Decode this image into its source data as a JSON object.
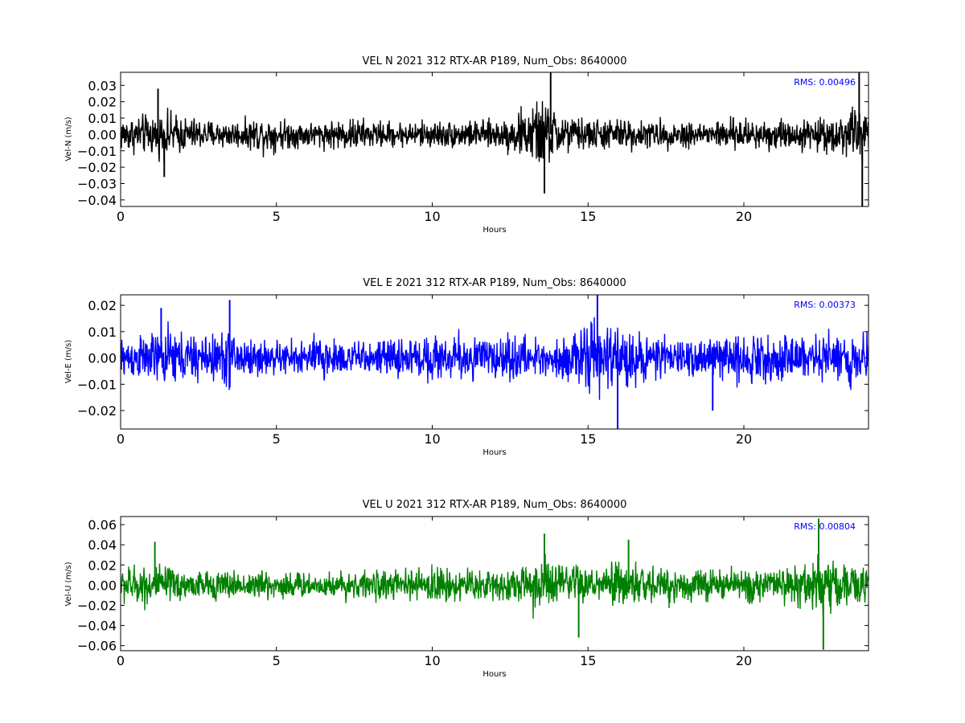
{
  "chart_data": [
    {
      "type": "line",
      "title": "VEL N 2021 312 RTX-AR  P189, Num_Obs: 8640000",
      "xlabel": "Hours",
      "ylabel": "Vel-N (m/s)",
      "xlim": [
        0,
        24
      ],
      "ylim": [
        -0.044,
        0.038
      ],
      "xticks": [
        0,
        5,
        10,
        15,
        20
      ],
      "xtick_labels": [
        "0",
        "5",
        "10",
        "15",
        "20"
      ],
      "yticks": [
        -0.04,
        -0.03,
        -0.02,
        -0.01,
        0.0,
        0.01,
        0.02,
        0.03
      ],
      "ytick_labels": [
        "−0.04",
        "−0.03",
        "−0.02",
        "−0.01",
        "0.00",
        "0.01",
        "0.02",
        "0.03"
      ],
      "color": "#000000",
      "rms_label": "RMS:  0.00496",
      "rms_color": "#0000ff",
      "grid": false,
      "envelope": {
        "x": [
          0,
          1,
          1.5,
          2,
          3,
          4,
          4.5,
          5,
          6,
          7,
          7.5,
          8,
          9,
          10,
          11,
          12,
          12.5,
          13,
          13.5,
          14,
          14.5,
          15,
          16,
          17,
          18,
          19,
          20,
          21,
          22,
          23,
          23.5,
          24
        ],
        "amp": [
          0.015,
          0.018,
          0.02,
          0.016,
          0.012,
          0.012,
          0.016,
          0.014,
          0.011,
          0.013,
          0.015,
          0.012,
          0.011,
          0.012,
          0.012,
          0.012,
          0.016,
          0.024,
          0.03,
          0.022,
          0.015,
          0.014,
          0.014,
          0.012,
          0.012,
          0.012,
          0.014,
          0.014,
          0.013,
          0.016,
          0.024,
          0.022
        ]
      },
      "spikes": [
        {
          "x": 1.2,
          "y": 0.028
        },
        {
          "x": 1.4,
          "y": -0.026
        },
        {
          "x": 13.8,
          "y": 0.038
        },
        {
          "x": 13.6,
          "y": -0.036
        },
        {
          "x": 23.7,
          "y": 0.038
        },
        {
          "x": 23.8,
          "y": -0.044
        }
      ]
    },
    {
      "type": "line",
      "title": "VEL E 2021 312 RTX-AR  P189, Num_Obs: 8640000",
      "xlabel": "Hours",
      "ylabel": "Vel-E (m/s)",
      "xlim": [
        0,
        24
      ],
      "ylim": [
        -0.027,
        0.024
      ],
      "xticks": [
        0,
        5,
        10,
        15,
        20
      ],
      "xtick_labels": [
        "0",
        "5",
        "10",
        "15",
        "20"
      ],
      "yticks": [
        -0.02,
        -0.01,
        0.0,
        0.01,
        0.02
      ],
      "ytick_labels": [
        "−0.02",
        "−0.01",
        "0.00",
        "0.01",
        "0.02"
      ],
      "color": "#0000ff",
      "rms_label": "RMS:  0.00373",
      "rms_color": "#0000ff",
      "grid": false,
      "envelope": {
        "x": [
          0,
          1,
          1.5,
          2,
          3,
          3.5,
          4,
          5,
          6,
          6.5,
          7,
          8,
          9,
          10,
          11,
          12,
          13,
          14,
          14.5,
          15,
          15.5,
          16,
          16.5,
          17,
          18,
          19,
          20,
          21,
          22,
          23,
          24
        ],
        "amp": [
          0.011,
          0.013,
          0.016,
          0.014,
          0.012,
          0.017,
          0.011,
          0.009,
          0.01,
          0.014,
          0.01,
          0.008,
          0.011,
          0.012,
          0.013,
          0.012,
          0.011,
          0.01,
          0.013,
          0.018,
          0.02,
          0.016,
          0.014,
          0.011,
          0.01,
          0.011,
          0.013,
          0.012,
          0.012,
          0.014,
          0.014
        ]
      },
      "spikes": [
        {
          "x": 3.5,
          "y": 0.022
        },
        {
          "x": 15.3,
          "y": 0.024
        },
        {
          "x": 15.95,
          "y": -0.027
        },
        {
          "x": 1.3,
          "y": 0.019
        },
        {
          "x": 19.0,
          "y": -0.02
        }
      ]
    },
    {
      "type": "line",
      "title": "VEL U 2021 312 RTX-AR  P189, Num_Obs: 8640000",
      "xlabel": "Hours",
      "ylabel": "Vel-U (m/s)",
      "xlim": [
        0,
        24
      ],
      "ylim": [
        -0.065,
        0.068
      ],
      "xticks": [
        0,
        5,
        10,
        15,
        20
      ],
      "xtick_labels": [
        "0",
        "5",
        "10",
        "15",
        "20"
      ],
      "yticks": [
        -0.06,
        -0.04,
        -0.02,
        0.0,
        0.02,
        0.04,
        0.06
      ],
      "ytick_labels": [
        "−0.06",
        "−0.04",
        "−0.02",
        "0.00",
        "0.02",
        "0.04",
        "0.06"
      ],
      "color": "#008000",
      "rms_label": "RMS:  0.00804",
      "rms_color": "#0000ff",
      "grid": false,
      "envelope": {
        "x": [
          0,
          1,
          2,
          3,
          4,
          5,
          6,
          7,
          8,
          9,
          10,
          11,
          12,
          13,
          13.5,
          14,
          15,
          15.5,
          16,
          16.5,
          17,
          18,
          19,
          20,
          21,
          22,
          22.5,
          23,
          24
        ],
        "amp": [
          0.026,
          0.03,
          0.022,
          0.02,
          0.02,
          0.022,
          0.018,
          0.02,
          0.02,
          0.02,
          0.026,
          0.025,
          0.022,
          0.03,
          0.042,
          0.035,
          0.024,
          0.026,
          0.034,
          0.036,
          0.026,
          0.024,
          0.024,
          0.024,
          0.022,
          0.034,
          0.05,
          0.03,
          0.024
        ]
      },
      "spikes": [
        {
          "x": 22.4,
          "y": 0.066
        },
        {
          "x": 22.55,
          "y": -0.064
        },
        {
          "x": 1.1,
          "y": 0.043
        },
        {
          "x": 13.6,
          "y": 0.051
        },
        {
          "x": 14.7,
          "y": -0.052
        },
        {
          "x": 16.3,
          "y": 0.045
        }
      ]
    }
  ]
}
